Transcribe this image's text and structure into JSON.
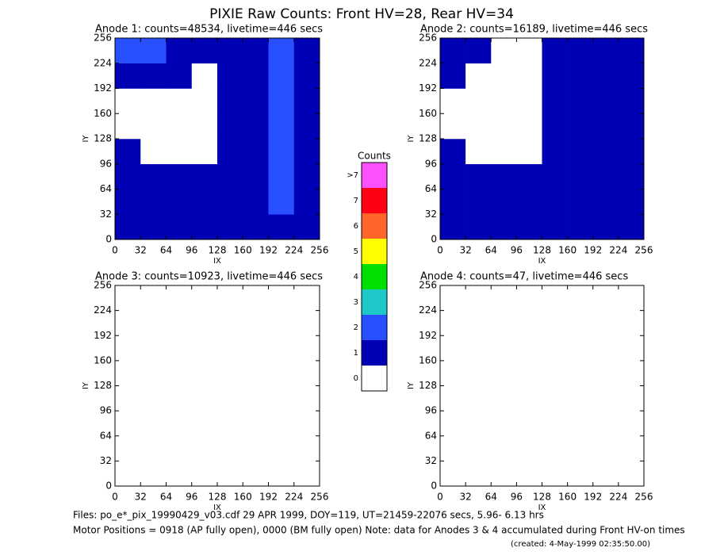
{
  "title": "PIXIE Raw Counts:  Front HV=28, Rear HV=34",
  "footer": [
    "Files: po_e*_pix_19990429_v03.cdf    29 APR 1999, DOY=119, UT=21459-22076 secs,  5.96- 6.13 hrs",
    "Motor Positions = 0918 (AP fully open), 0000 (BM fully open)    Note: data for Anodes 3 & 4 accumulated during Front HV-on times",
    "(created:  4-May-1999 02:35:50.00)"
  ],
  "colorbar": {
    "label": "Counts",
    "categories": [
      "0",
      "1",
      "2",
      "3",
      "4",
      "5",
      "6",
      "7",
      ">7"
    ],
    "colors": [
      "#ffffff",
      "#0000b4",
      "#2850ff",
      "#1ec8c8",
      "#00e000",
      "#ffff00",
      "#ff6428",
      "#ff0014",
      "#ff50ff"
    ]
  },
  "chart_data": [
    {
      "type": "heatmap",
      "title": "Anode 1: counts=48534, livetime=446 secs",
      "xlabel": "IX",
      "ylabel": "IY",
      "xlim": [
        0,
        256
      ],
      "ylim": [
        0,
        256
      ],
      "xticks": [
        0,
        32,
        64,
        96,
        128,
        160,
        192,
        224,
        256
      ],
      "yticks": [
        0,
        32,
        64,
        96,
        128,
        160,
        192,
        224,
        256
      ],
      "z": [
        [
          1,
          1,
          1,
          1,
          1,
          1,
          1,
          1
        ],
        [
          1,
          1,
          1,
          1,
          1,
          1,
          2,
          1
        ],
        [
          1,
          1,
          1,
          1,
          1,
          1,
          2,
          1
        ],
        [
          1,
          0,
          0,
          0,
          1,
          1,
          2,
          1
        ],
        [
          0,
          0,
          0,
          0,
          1,
          1,
          2,
          1
        ],
        [
          0,
          0,
          0,
          0,
          1,
          1,
          2,
          1
        ],
        [
          1,
          1,
          1,
          0,
          1,
          1,
          2,
          1
        ],
        [
          2,
          2,
          1,
          1,
          1,
          1,
          2,
          1
        ]
      ]
    },
    {
      "type": "heatmap",
      "title": "Anode 2: counts=16189, livetime=446 secs",
      "xlabel": "IX",
      "ylabel": "IY",
      "xlim": [
        0,
        256
      ],
      "ylim": [
        0,
        256
      ],
      "xticks": [
        0,
        32,
        64,
        96,
        128,
        160,
        192,
        224,
        256
      ],
      "yticks": [
        0,
        32,
        64,
        96,
        128,
        160,
        192,
        224,
        256
      ],
      "z": [
        [
          1,
          1,
          1,
          1,
          1,
          1,
          1,
          1
        ],
        [
          1,
          1,
          1,
          1,
          1,
          1,
          1,
          1
        ],
        [
          1,
          1,
          1,
          1,
          1,
          1,
          1,
          1
        ],
        [
          1,
          0,
          0,
          0,
          1,
          1,
          1,
          1
        ],
        [
          0,
          0,
          0,
          0,
          1,
          1,
          1,
          1
        ],
        [
          0,
          0,
          0,
          0,
          1,
          1,
          1,
          1
        ],
        [
          1,
          0,
          0,
          0,
          1,
          1,
          1,
          1
        ],
        [
          1,
          1,
          0,
          0,
          1,
          1,
          1,
          1
        ]
      ]
    },
    {
      "type": "heatmap",
      "title": "Anode 3: counts=10923, livetime=446 secs",
      "xlabel": "IX",
      "ylabel": "IY",
      "xlim": [
        0,
        256
      ],
      "ylim": [
        0,
        256
      ],
      "xticks": [
        0,
        32,
        64,
        96,
        128,
        160,
        192,
        224,
        256
      ],
      "yticks": [
        0,
        32,
        64,
        96,
        128,
        160,
        192,
        224,
        256
      ],
      "z": [
        [
          0,
          0,
          0,
          0,
          0,
          0,
          0,
          0
        ],
        [
          0,
          0,
          0,
          0,
          0,
          0,
          0,
          0
        ],
        [
          0,
          0,
          0,
          0,
          0,
          0,
          0,
          0
        ],
        [
          0,
          0,
          0,
          0,
          0,
          0,
          0,
          0
        ],
        [
          0,
          0,
          0,
          0,
          0,
          0,
          0,
          0
        ],
        [
          0,
          0,
          0,
          0,
          0,
          0,
          0,
          0
        ],
        [
          0,
          0,
          0,
          0,
          0,
          0,
          0,
          0
        ],
        [
          0,
          0,
          0,
          0,
          0,
          0,
          0,
          0
        ]
      ]
    },
    {
      "type": "heatmap",
      "title": "Anode 4: counts=47, livetime=446 secs",
      "xlabel": "IX",
      "ylabel": "IY",
      "xlim": [
        0,
        256
      ],
      "ylim": [
        0,
        256
      ],
      "xticks": [
        0,
        32,
        64,
        96,
        128,
        160,
        192,
        224,
        256
      ],
      "yticks": [
        0,
        32,
        64,
        96,
        128,
        160,
        192,
        224,
        256
      ],
      "z": [
        [
          0,
          0,
          0,
          0,
          0,
          0,
          0,
          0
        ],
        [
          0,
          0,
          0,
          0,
          0,
          0,
          0,
          0
        ],
        [
          0,
          0,
          0,
          0,
          0,
          0,
          0,
          0
        ],
        [
          0,
          0,
          0,
          0,
          0,
          0,
          0,
          0
        ],
        [
          0,
          0,
          0,
          0,
          0,
          0,
          0,
          0
        ],
        [
          0,
          0,
          0,
          0,
          0,
          0,
          0,
          0
        ],
        [
          0,
          0,
          0,
          0,
          0,
          0,
          0,
          0
        ],
        [
          0,
          0,
          0,
          0,
          0,
          0,
          0,
          0
        ]
      ]
    }
  ]
}
